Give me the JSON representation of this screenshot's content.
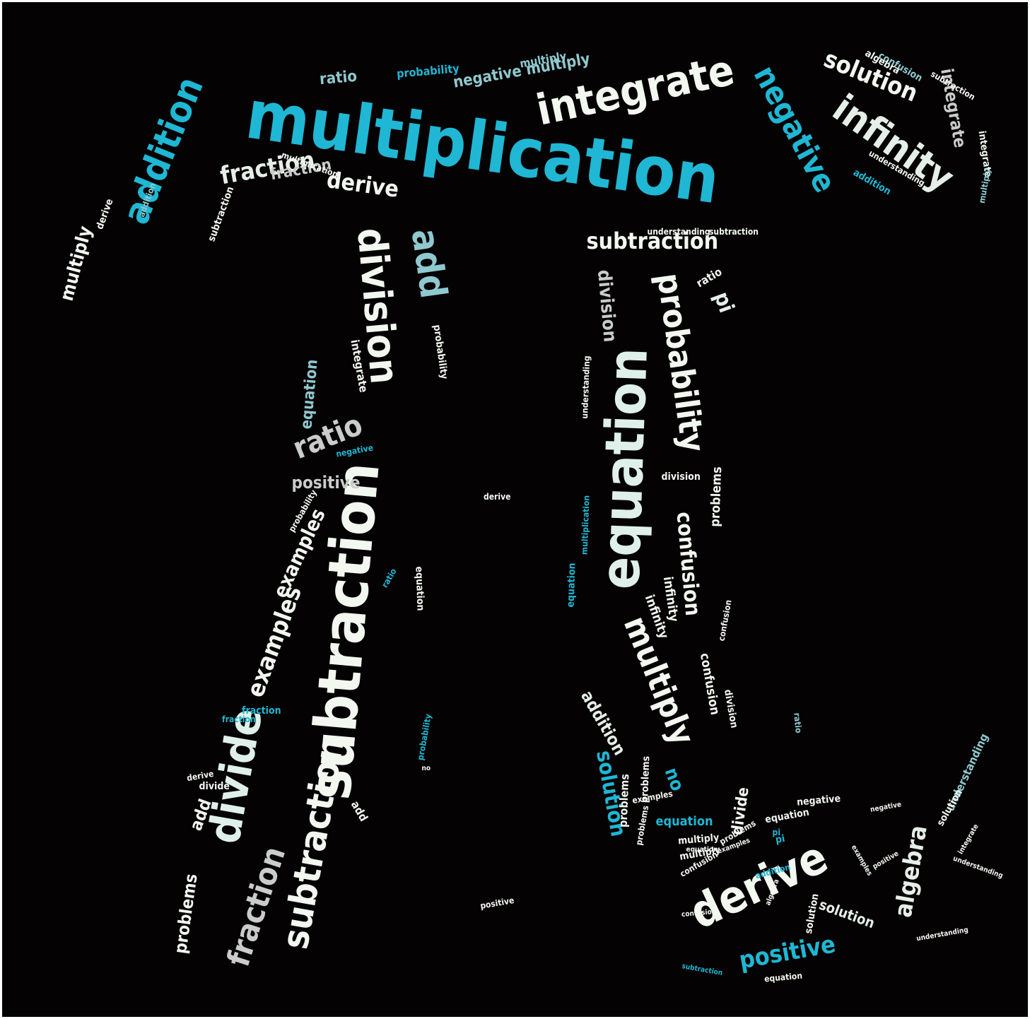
{
  "palette": {
    "background": "#050203",
    "frame": "#ffffff",
    "cyan": "#1fb7d4",
    "teal": "#8fc9cf",
    "white": "#f2f7f0",
    "light": "#e6eee8",
    "grey": "#c9cccb",
    "mint": "#dff0ea"
  },
  "words": [
    {
      "text": "multiplication"
    },
    {
      "text": "integrate"
    },
    {
      "text": "negative"
    },
    {
      "text": "infinity"
    },
    {
      "text": "solution"
    },
    {
      "text": "integrate"
    },
    {
      "text": "confusion"
    },
    {
      "text": "addition"
    },
    {
      "text": "multiply"
    },
    {
      "text": "fraction"
    },
    {
      "text": "derive"
    },
    {
      "text": "subtraction"
    },
    {
      "text": "ratio"
    },
    {
      "text": "probability"
    },
    {
      "text": "negative multiply"
    },
    {
      "text": "division"
    },
    {
      "text": "add"
    },
    {
      "text": "subtraction"
    },
    {
      "text": "probability"
    },
    {
      "text": "pi"
    },
    {
      "text": "equation"
    },
    {
      "text": "division"
    },
    {
      "text": "ratio"
    },
    {
      "text": "equation"
    },
    {
      "text": "integrate"
    },
    {
      "text": "positive"
    },
    {
      "text": "subtraction"
    },
    {
      "text": "examples"
    },
    {
      "text": "examples"
    },
    {
      "text": "divide"
    },
    {
      "text": "fraction"
    },
    {
      "text": "problems"
    },
    {
      "text": "add"
    },
    {
      "text": "equation"
    },
    {
      "text": "confusion"
    },
    {
      "text": "multiply"
    },
    {
      "text": "addition"
    },
    {
      "text": "solution"
    },
    {
      "text": "no"
    },
    {
      "text": "derive"
    },
    {
      "text": "positive"
    },
    {
      "text": "algebra"
    },
    {
      "text": "understanding"
    },
    {
      "text": "divide"
    },
    {
      "text": "equation"
    },
    {
      "text": "solution"
    },
    {
      "text": "problems"
    },
    {
      "text": "infinity"
    },
    {
      "text": "confusion"
    },
    {
      "text": "understanding"
    },
    {
      "text": "division"
    },
    {
      "text": "fraction"
    },
    {
      "text": "multiply"
    },
    {
      "text": "problems"
    },
    {
      "text": "negative"
    },
    {
      "text": "probability"
    },
    {
      "text": "equation"
    },
    {
      "text": "multiply"
    },
    {
      "text": "integrate"
    },
    {
      "text": "ratio"
    },
    {
      "text": "addition"
    },
    {
      "text": "understanding"
    },
    {
      "text": "derive"
    },
    {
      "text": "understanding"
    },
    {
      "text": "fraction"
    },
    {
      "text": "problems"
    },
    {
      "text": "negative"
    },
    {
      "text": "pi"
    },
    {
      "text": "add"
    },
    {
      "text": "solution"
    },
    {
      "text": "subtraction"
    },
    {
      "text": "confusion"
    },
    {
      "text": "probability"
    },
    {
      "text": "multiply"
    },
    {
      "text": "derive"
    },
    {
      "text": "fraction"
    },
    {
      "text": "division"
    },
    {
      "text": "integrate"
    },
    {
      "text": "problems"
    },
    {
      "text": "infinity"
    },
    {
      "text": "solution"
    },
    {
      "text": "equation"
    },
    {
      "text": "multiplication"
    },
    {
      "text": "subtraction"
    },
    {
      "text": "addition"
    },
    {
      "text": "divide"
    },
    {
      "text": "examples"
    },
    {
      "text": "problems"
    },
    {
      "text": "pi"
    },
    {
      "text": "ratio"
    },
    {
      "text": "confusion"
    },
    {
      "text": "algebra"
    },
    {
      "text": "positive"
    },
    {
      "text": "equation"
    },
    {
      "text": "examples"
    },
    {
      "text": "negative"
    },
    {
      "text": "subtraction"
    },
    {
      "text": "understanding"
    },
    {
      "text": "confusion"
    },
    {
      "text": "multiplication"
    },
    {
      "text": "probability"
    },
    {
      "text": "no"
    },
    {
      "text": "examples"
    },
    {
      "text": "addition"
    },
    {
      "text": "equation"
    },
    {
      "text": "understanding"
    },
    {
      "text": "multiply"
    },
    {
      "text": "algebra"
    },
    {
      "text": "ratio"
    },
    {
      "text": "positive"
    },
    {
      "text": "subtraction"
    },
    {
      "text": "derive"
    }
  ]
}
